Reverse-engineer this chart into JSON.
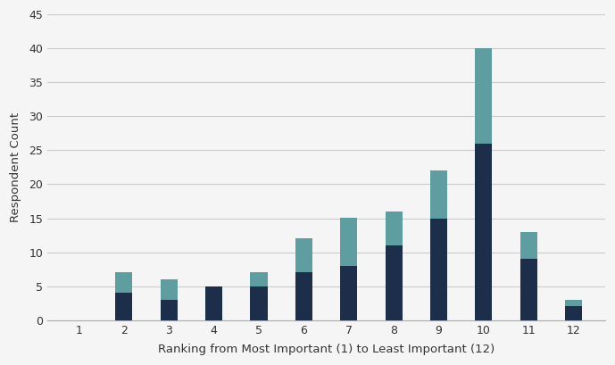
{
  "categories": [
    1,
    2,
    3,
    4,
    5,
    6,
    7,
    8,
    9,
    10,
    11,
    12
  ],
  "bottom_values": [
    0,
    4,
    3,
    5,
    5,
    7,
    8,
    11,
    15,
    26,
    9,
    2
  ],
  "top_values": [
    0,
    3,
    3,
    0,
    2,
    5,
    7,
    5,
    7,
    14,
    4,
    1
  ],
  "color_bottom": "#1c2e4a",
  "color_top": "#5f9ea0",
  "ylabel": "Respondent Count",
  "xlabel": "Ranking from Most Important (1) to Least Important (12)",
  "ylim": [
    0,
    45
  ],
  "yticks": [
    0,
    5,
    10,
    15,
    20,
    25,
    30,
    35,
    40,
    45
  ],
  "background_color": "#f5f5f5",
  "grid_color": "#cccccc",
  "bar_width": 0.38
}
